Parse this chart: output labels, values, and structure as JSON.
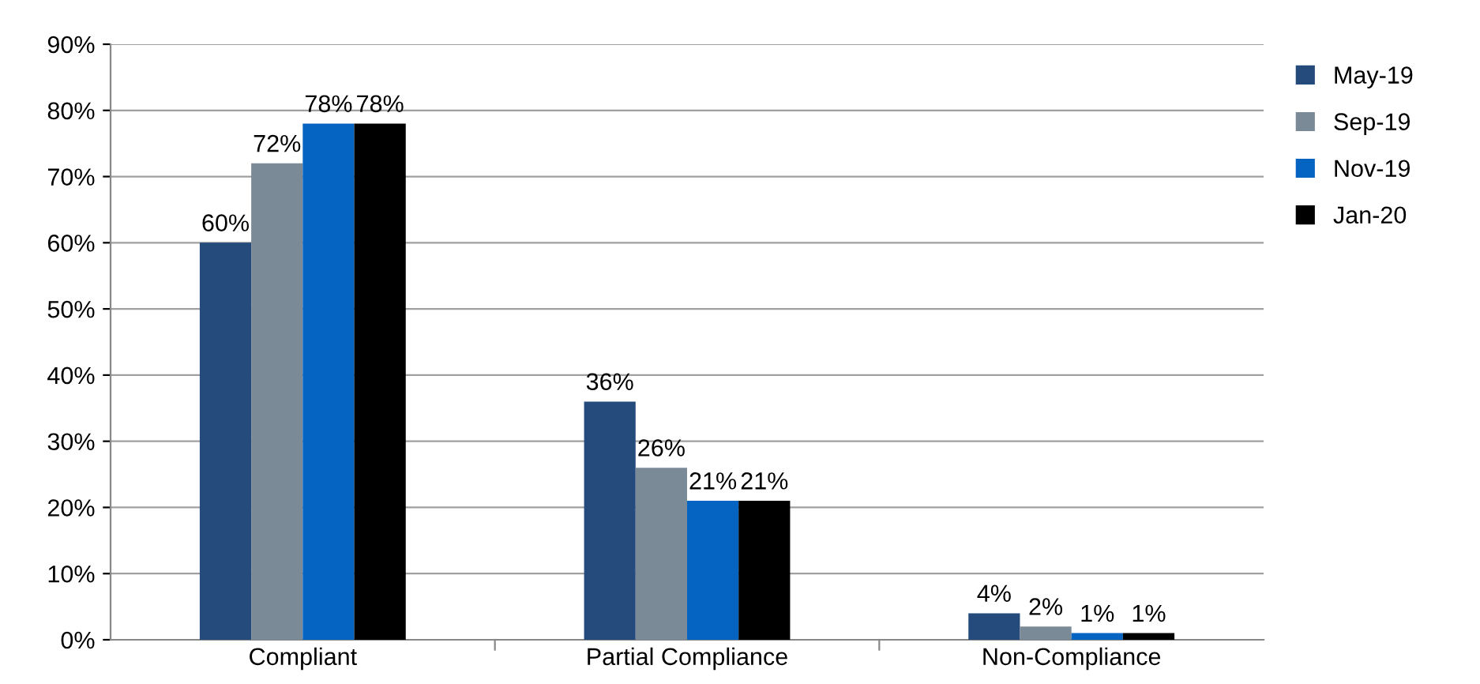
{
  "chart_data": {
    "type": "bar",
    "categories": [
      "Compliant",
      "Partial Compliance",
      "Non-Compliance"
    ],
    "series": [
      {
        "name": "May-19",
        "color": "#254a7c",
        "values": [
          60,
          36,
          4
        ],
        "value_labels": [
          "60%",
          "36%",
          "4%"
        ]
      },
      {
        "name": "Sep-19",
        "color": "#7b8a97",
        "values": [
          72,
          26,
          2
        ],
        "value_labels": [
          "72%",
          "26%",
          "2%"
        ]
      },
      {
        "name": "Nov-19",
        "color": "#0563c1",
        "values": [
          78,
          21,
          1
        ],
        "value_labels": [
          "78%",
          "21%",
          "1%"
        ]
      },
      {
        "name": "Jan-20",
        "color": "#000000",
        "values": [
          78,
          21,
          1
        ],
        "value_labels": [
          "78%",
          "21%",
          "1%"
        ]
      }
    ],
    "ylim": [
      0,
      90
    ],
    "yticks": [
      {
        "value": 0,
        "label": "0%"
      },
      {
        "value": 10,
        "label": "10%"
      },
      {
        "value": 20,
        "label": "20%"
      },
      {
        "value": 30,
        "label": "30%"
      },
      {
        "value": 40,
        "label": "40%"
      },
      {
        "value": 50,
        "label": "50%"
      },
      {
        "value": 60,
        "label": "60%"
      },
      {
        "value": 70,
        "label": "70%"
      },
      {
        "value": 80,
        "label": "80%"
      },
      {
        "value": 90,
        "label": "90%"
      }
    ],
    "grid": "y",
    "legend": "top right"
  }
}
